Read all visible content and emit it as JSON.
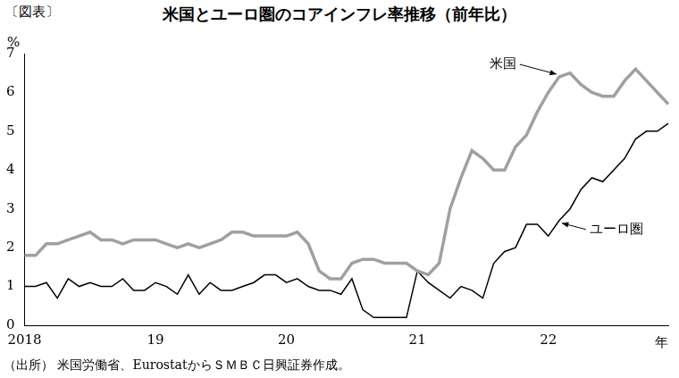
{
  "chart_data": {
    "type": "line",
    "figure_label": "〔図表〕",
    "title": "米国とユーロ圏のコアインフレ率推移（前年比）",
    "y_label": "%",
    "x_label": "年",
    "source": "（出所） 米国労働省、EurostatからＳＭＢＣ日興証券作成。",
    "categories": [
      "2018",
      null,
      null,
      null,
      null,
      null,
      null,
      null,
      null,
      null,
      null,
      null,
      "19",
      null,
      null,
      null,
      null,
      null,
      null,
      null,
      null,
      null,
      null,
      null,
      "20",
      null,
      null,
      null,
      null,
      null,
      null,
      null,
      null,
      null,
      null,
      null,
      "21",
      null,
      null,
      null,
      null,
      null,
      null,
      null,
      null,
      null,
      null,
      null,
      "22",
      null,
      null,
      null,
      null,
      null,
      null,
      null,
      null,
      null,
      null,
      null
    ],
    "series": [
      {
        "name": "米国",
        "color": "#a0a0a0",
        "values": [
          1.8,
          1.8,
          2.1,
          2.1,
          2.2,
          2.3,
          2.4,
          2.2,
          2.2,
          2.1,
          2.2,
          2.2,
          2.2,
          2.1,
          2.0,
          2.1,
          2.0,
          2.1,
          2.2,
          2.4,
          2.4,
          2.3,
          2.3,
          2.3,
          2.3,
          2.4,
          2.1,
          1.4,
          1.2,
          1.2,
          1.6,
          1.7,
          1.7,
          1.6,
          1.6,
          1.6,
          1.4,
          1.3,
          1.6,
          3.0,
          3.8,
          4.5,
          4.3,
          4.0,
          4.0,
          4.6,
          4.9,
          5.5,
          6.0,
          6.4,
          6.5,
          6.2,
          6.0,
          5.9,
          5.9,
          6.3,
          6.6,
          6.3,
          6.0,
          5.7
        ]
      },
      {
        "name": "ユーロ圏",
        "color": "#000000",
        "values": [
          1.0,
          1.0,
          1.1,
          0.7,
          1.2,
          1.0,
          1.1,
          1.0,
          1.0,
          1.2,
          0.9,
          0.9,
          1.1,
          1.0,
          0.8,
          1.3,
          0.8,
          1.1,
          0.9,
          0.9,
          1.0,
          1.1,
          1.3,
          1.3,
          1.1,
          1.2,
          1.0,
          0.9,
          0.9,
          0.8,
          1.2,
          0.4,
          0.2,
          0.2,
          0.2,
          0.2,
          1.4,
          1.1,
          0.9,
          0.7,
          1.0,
          0.9,
          0.7,
          1.6,
          1.9,
          2.0,
          2.6,
          2.6,
          2.3,
          2.7,
          3.0,
          3.5,
          3.8,
          3.7,
          4.0,
          4.3,
          4.8,
          5.0,
          5.0,
          5.2
        ]
      }
    ],
    "ylim": [
      0,
      7
    ],
    "yticks": [
      0,
      1,
      2,
      3,
      4,
      5,
      6,
      7
    ],
    "grid": false,
    "legend": "none"
  }
}
